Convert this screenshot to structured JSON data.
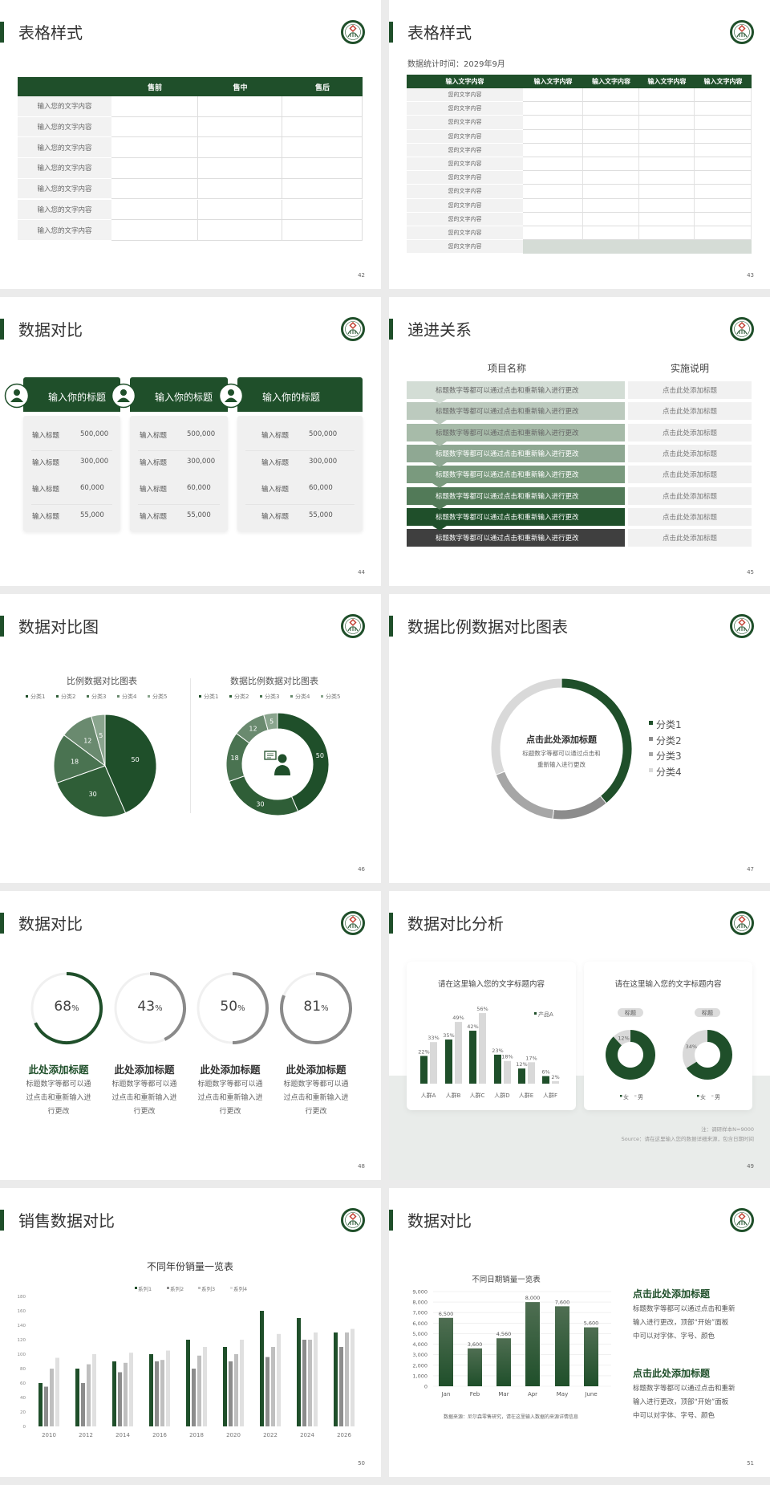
{
  "colors": {
    "brand_green": "#1f4f2a",
    "gray_dark": "#8c8c8c",
    "gray_mid": "#a6a6a6",
    "gray_light": "#d9d9d9",
    "text": "#444444"
  },
  "slides": [
    {
      "title": "表格样式",
      "page": "42",
      "table": {
        "headers": [
          "",
          "售前",
          "售中",
          "售后"
        ],
        "rows": [
          "输入您的文字内容",
          "输入您的文字内容",
          "输入您的文字内容",
          "输入您的文字内容",
          "输入您的文字内容",
          "输入您的文字内容",
          "输入您的文字内容"
        ]
      }
    },
    {
      "title": "表格样式",
      "page": "43",
      "subtitle": "数据统计时间：2029年9月",
      "table": {
        "headers": [
          "输入文字内容",
          "输入文字内容",
          "输入文字内容",
          "输入文字内容",
          "输入文字内容"
        ],
        "rows": [
          "您的文字内容",
          "您的文字内容",
          "您的文字内容",
          "您的文字内容",
          "您的文字内容",
          "您的文字内容",
          "您的文字内容",
          "您的文字内容",
          "您的文字内容",
          "您的文字内容",
          "您的文字内容",
          "您的文字内容"
        ]
      }
    },
    {
      "title": "数据对比",
      "page": "44",
      "cards": [
        {
          "title": "输入你的标题",
          "icon": "phone-user-icon",
          "rows": [
            {
              "label": "输入标题",
              "value": "500,000"
            },
            {
              "label": "输入标题",
              "value": "300,000"
            },
            {
              "label": "输入标题",
              "value": "60,000"
            },
            {
              "label": "输入标题",
              "value": "55,000"
            }
          ]
        },
        {
          "title": "输入你的标题",
          "icon": "user-gear-icon",
          "rows": [
            {
              "label": "输入标题",
              "value": "500,000"
            },
            {
              "label": "输入标题",
              "value": "300,000"
            },
            {
              "label": "输入标题",
              "value": "60,000"
            },
            {
              "label": "输入标题",
              "value": "55,000"
            }
          ]
        },
        {
          "title": "输入你的标题",
          "icon": "user-group-icon",
          "rows": [
            {
              "label": "输入标题",
              "value": "500,000"
            },
            {
              "label": "输入标题",
              "value": "300,000"
            },
            {
              "label": "输入标题",
              "value": "60,000"
            },
            {
              "label": "输入标题",
              "value": "55,000"
            }
          ]
        }
      ]
    },
    {
      "title": "递进关系",
      "page": "45",
      "col_headers": [
        "项目名称",
        "实施说明"
      ],
      "step_colors": [
        "#d3ddd5",
        "#bccabe",
        "#a7bba9",
        "#8fa893",
        "#7a9a7e",
        "#527a58",
        "#1f4f2a",
        "#3f3f3f"
      ],
      "steps": [
        {
          "text": "标题数字等都可以通过点击和重新输入进行更改",
          "note": "点击此处添加标题"
        },
        {
          "text": "标题数字等都可以通过点击和重新输入进行更改",
          "note": "点击此处添加标题"
        },
        {
          "text": "标题数字等都可以通过点击和重新输入进行更改",
          "note": "点击此处添加标题"
        },
        {
          "text": "标题数字等都可以通过点击和重新输入进行更改",
          "note": "点击此处添加标题"
        },
        {
          "text": "标题数字等都可以通过点击和重新输入进行更改",
          "note": "点击此处添加标题"
        },
        {
          "text": "标题数字等都可以通过点击和重新输入进行更改",
          "note": "点击此处添加标题"
        },
        {
          "text": "标题数字等都可以通过点击和重新输入进行更改",
          "note": "点击此处添加标题"
        },
        {
          "text": "标题数字等都可以通过点击和重新输入进行更改",
          "note": "点击此处添加标题"
        }
      ]
    },
    {
      "title": "数据对比图",
      "page": "46"
    },
    {
      "title": "数据比例数据对比图表",
      "page": "47"
    },
    {
      "title": "数据对比",
      "page": "48",
      "rings": [
        {
          "value": 68,
          "unit": "%",
          "heading": "此处添加标题",
          "lines": [
            "标题数字等都可以通",
            "过点击和重新输入进",
            "行更改"
          ],
          "color": "#1f4f2a"
        },
        {
          "value": 43,
          "unit": "%",
          "heading": "此处添加标题",
          "lines": [
            "标题数字等都可以通",
            "过点击和重新输入进",
            "行更改"
          ],
          "color": "#8a8a8a"
        },
        {
          "value": 50,
          "unit": "%",
          "heading": "此处添加标题",
          "lines": [
            "标题数字等都可以通",
            "过点击和重新输入进",
            "行更改"
          ],
          "color": "#8a8a8a"
        },
        {
          "value": 81,
          "unit": "%",
          "heading": "此处添加标题",
          "lines": [
            "标题数字等都可以通",
            "过点击和重新输入进",
            "行更改"
          ],
          "color": "#8a8a8a"
        }
      ]
    },
    {
      "title": "数据对比分析",
      "page": "49",
      "notes": [
        "注：调研样本N=9000",
        "Source：请在这里输入您的数据详细来源，包含日期时间"
      ]
    },
    {
      "title": "销售数据对比",
      "page": "50"
    },
    {
      "title": "数据对比",
      "page": "51",
      "blocks": [
        {
          "heading": "点击此处添加标题",
          "lines": [
            "标题数字等都可以通过点击和重新",
            "输入进行更改，顶部“开始”面板",
            "中可以对字体、字号、颜色"
          ]
        },
        {
          "heading": "点击此处添加标题",
          "lines": [
            "标题数字等都可以通过点击和重新",
            "输入进行更改，顶部“开始”面板",
            "中可以对字体、字号、颜色"
          ]
        }
      ]
    }
  ],
  "chart_data": [
    {
      "type": "pie",
      "title": "比例数据对比图表",
      "categories": [
        "分类1",
        "分类2",
        "分类3",
        "分类4",
        "分类5"
      ],
      "values": [
        50,
        30,
        18,
        12,
        5
      ],
      "colors": [
        "#1f4f2a",
        "#2f5e37",
        "#4a7351",
        "#6a8a6f",
        "#8aa58e"
      ],
      "legend": "top"
    },
    {
      "type": "pie",
      "subtype": "donut",
      "title": "数据比例数据对比图表",
      "categories": [
        "分类1",
        "分类2",
        "分类3",
        "分类4",
        "分类5"
      ],
      "values": [
        50,
        30,
        18,
        12,
        5
      ],
      "colors": [
        "#1f4f2a",
        "#2f5e37",
        "#4a7351",
        "#6a8a6f",
        "#8aa58e"
      ],
      "legend": "top",
      "center_icon": "support-agent-icon"
    },
    {
      "type": "pie",
      "subtype": "donut",
      "categories": [
        "分类1",
        "分类2",
        "分类3",
        "分类4"
      ],
      "values": [
        39,
        13,
        17,
        31
      ],
      "colors": [
        "#1f4f2a",
        "#8c8c8c",
        "#a6a6a6",
        "#d9d9d9"
      ],
      "legend": "right",
      "center_title": "点击此处添加标题",
      "center_lines": [
        "标题数字等都可以通过点击和",
        "重新输入进行更改"
      ]
    },
    {
      "type": "bar",
      "title": "请在这里输入您的文字标题内容",
      "categories": [
        "人群A",
        "人群B",
        "人群C",
        "人群D",
        "人群E",
        "人群F"
      ],
      "series": [
        {
          "name": "产品A",
          "values": [
            22,
            35,
            42,
            23,
            12,
            6
          ],
          "labels": [
            "22%",
            "35%",
            "42%",
            "23%",
            "12%",
            "6%"
          ],
          "color": "#1f4f2a"
        },
        {
          "values": [
            33,
            49,
            56,
            18,
            17,
            2
          ],
          "labels": [
            "33%",
            "49%",
            "56%",
            "18%",
            "17%",
            "2%"
          ],
          "color": "#d9d9d9"
        }
      ],
      "legend": "top-right"
    },
    {
      "type": "pie",
      "subtype": "donut-pair",
      "title": "请在这里输入您的文字标题内容",
      "legend_items": [
        "女",
        "男"
      ],
      "colors": [
        "#1f4f2a",
        "#d9d9d9"
      ],
      "items": [
        {
          "tag": "标题",
          "values": [
            88,
            12
          ],
          "label": "12%"
        },
        {
          "tag": "标题",
          "values": [
            66,
            34
          ],
          "label": "34%"
        }
      ]
    },
    {
      "type": "bar",
      "title": "不同年份销量一览表",
      "categories": [
        "2010",
        "2012",
        "2014",
        "2016",
        "2018",
        "2020",
        "2022",
        "2024",
        "2026"
      ],
      "series": [
        {
          "name": "系列1",
          "values": [
            60,
            80,
            90,
            100,
            120,
            110,
            160,
            150,
            130
          ],
          "color": "#1f4f2a"
        },
        {
          "name": "系列2",
          "values": [
            55,
            60,
            75,
            90,
            80,
            90,
            96,
            120,
            110
          ],
          "color": "#8c8c8c"
        },
        {
          "name": "系列3",
          "values": [
            80,
            86,
            88,
            92,
            98,
            100,
            110,
            120,
            130
          ],
          "color": "#bfbfbf"
        },
        {
          "name": "系列4",
          "values": [
            95,
            100,
            102,
            105,
            110,
            120,
            128,
            130,
            135
          ],
          "color": "#e0e0e0"
        }
      ],
      "ylim": [
        0,
        180
      ],
      "yticks": [
        "0",
        "20",
        "40",
        "60",
        "80",
        "100",
        "120",
        "140",
        "160",
        "180"
      ],
      "legend": "top",
      "grid": false
    },
    {
      "type": "bar",
      "title": "不同日期销量一览表",
      "categories": [
        "Jan",
        "Feb",
        "Mar",
        "Apr",
        "May",
        "June"
      ],
      "values": [
        6500,
        3600,
        4560,
        8000,
        7600,
        5600
      ],
      "labels": [
        "6,500",
        "3,600",
        "4,560",
        "8,000",
        "7,600",
        "5,600"
      ],
      "ylim": [
        0,
        9000
      ],
      "yticks": [
        "0",
        "1,000",
        "2,000",
        "3,000",
        "4,000",
        "5,000",
        "6,000",
        "7,000",
        "8,000",
        "9,000"
      ],
      "grid": true,
      "color": "#1f4f2a",
      "note": "数据来源：尼尔森零售研究，请在这里输入数据的来源详情信息"
    }
  ]
}
